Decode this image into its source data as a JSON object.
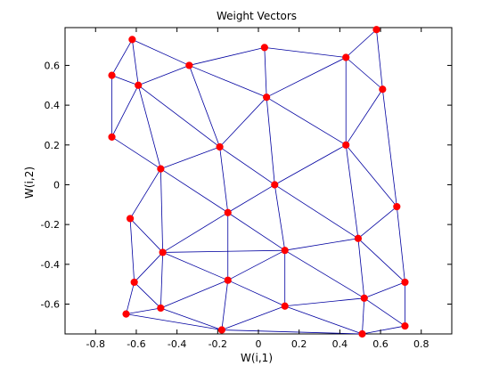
{
  "figure": {
    "background": "#ffffff",
    "axes_background": "#ffffff",
    "axes_color": "#000000"
  },
  "chart_data": {
    "type": "scatter",
    "title": "Weight Vectors",
    "xlabel": "W(i,1)",
    "ylabel": "W(i,2)",
    "xlim": [
      -0.95,
      0.95
    ],
    "ylim": [
      -0.75,
      0.79
    ],
    "grid": false,
    "xticks": [
      -0.8,
      -0.6,
      -0.4,
      -0.2,
      0,
      0.2,
      0.4,
      0.6,
      0.8
    ],
    "yticks": [
      -0.6,
      -0.4,
      -0.2,
      0,
      0.2,
      0.4,
      0.6
    ],
    "xtick_labels": [
      "-0.8",
      "-0.6",
      "-0.4",
      "-0.2",
      "0",
      "0.2",
      "0.4",
      "0.6",
      "0.8"
    ],
    "ytick_labels": [
      "-0.6",
      "-0.4",
      "-0.2",
      "0",
      "0.2",
      "0.4",
      "0.6"
    ],
    "marker_color": "#ff0000",
    "line_color": "#0000a0",
    "points": [
      {
        "x": -0.62,
        "y": 0.73
      },
      {
        "x": -0.72,
        "y": 0.55
      },
      {
        "x": -0.34,
        "y": 0.6
      },
      {
        "x": -0.59,
        "y": 0.5
      },
      {
        "x": 0.03,
        "y": 0.69
      },
      {
        "x": 0.43,
        "y": 0.64
      },
      {
        "x": 0.58,
        "y": 0.78
      },
      {
        "x": 0.61,
        "y": 0.48
      },
      {
        "x": 0.04,
        "y": 0.44
      },
      {
        "x": -0.72,
        "y": 0.24
      },
      {
        "x": -0.19,
        "y": 0.19
      },
      {
        "x": 0.43,
        "y": 0.2
      },
      {
        "x": -0.48,
        "y": 0.08
      },
      {
        "x": 0.08,
        "y": 0.0
      },
      {
        "x": -0.15,
        "y": -0.14
      },
      {
        "x": -0.63,
        "y": -0.17
      },
      {
        "x": 0.68,
        "y": -0.11
      },
      {
        "x": 0.49,
        "y": -0.27
      },
      {
        "x": 0.13,
        "y": -0.33
      },
      {
        "x": -0.47,
        "y": -0.34
      },
      {
        "x": -0.61,
        "y": -0.49
      },
      {
        "x": -0.15,
        "y": -0.48
      },
      {
        "x": 0.52,
        "y": -0.57
      },
      {
        "x": 0.72,
        "y": -0.49
      },
      {
        "x": -0.48,
        "y": -0.62
      },
      {
        "x": 0.13,
        "y": -0.61
      },
      {
        "x": -0.65,
        "y": -0.65
      },
      {
        "x": -0.18,
        "y": -0.73
      },
      {
        "x": 0.51,
        "y": -0.75
      },
      {
        "x": 0.72,
        "y": -0.71
      }
    ],
    "edges": [
      [
        0,
        1
      ],
      [
        0,
        2
      ],
      [
        0,
        3
      ],
      [
        1,
        3
      ],
      [
        1,
        9
      ],
      [
        3,
        2
      ],
      [
        3,
        9
      ],
      [
        3,
        10
      ],
      [
        3,
        12
      ],
      [
        2,
        4
      ],
      [
        2,
        10
      ],
      [
        2,
        8
      ],
      [
        4,
        5
      ],
      [
        4,
        8
      ],
      [
        5,
        6
      ],
      [
        5,
        8
      ],
      [
        5,
        7
      ],
      [
        5,
        11
      ],
      [
        6,
        7
      ],
      [
        8,
        10
      ],
      [
        8,
        11
      ],
      [
        8,
        13
      ],
      [
        7,
        11
      ],
      [
        7,
        16
      ],
      [
        9,
        12
      ],
      [
        10,
        12
      ],
      [
        10,
        13
      ],
      [
        10,
        14
      ],
      [
        11,
        13
      ],
      [
        11,
        16
      ],
      [
        11,
        17
      ],
      [
        12,
        15
      ],
      [
        12,
        19
      ],
      [
        12,
        14
      ],
      [
        13,
        14
      ],
      [
        13,
        17
      ],
      [
        13,
        18
      ],
      [
        14,
        19
      ],
      [
        14,
        18
      ],
      [
        14,
        21
      ],
      [
        15,
        19
      ],
      [
        15,
        20
      ],
      [
        16,
        17
      ],
      [
        16,
        23
      ],
      [
        17,
        18
      ],
      [
        17,
        22
      ],
      [
        17,
        23
      ],
      [
        18,
        19
      ],
      [
        18,
        21
      ],
      [
        18,
        22
      ],
      [
        18,
        25
      ],
      [
        19,
        20
      ],
      [
        19,
        21
      ],
      [
        19,
        24
      ],
      [
        20,
        24
      ],
      [
        20,
        26
      ],
      [
        21,
        24
      ],
      [
        21,
        25
      ],
      [
        21,
        27
      ],
      [
        22,
        23
      ],
      [
        22,
        25
      ],
      [
        22,
        29
      ],
      [
        22,
        28
      ],
      [
        23,
        29
      ],
      [
        24,
        26
      ],
      [
        24,
        27
      ],
      [
        25,
        27
      ],
      [
        25,
        28
      ],
      [
        26,
        27
      ],
      [
        27,
        28
      ],
      [
        28,
        29
      ]
    ]
  }
}
